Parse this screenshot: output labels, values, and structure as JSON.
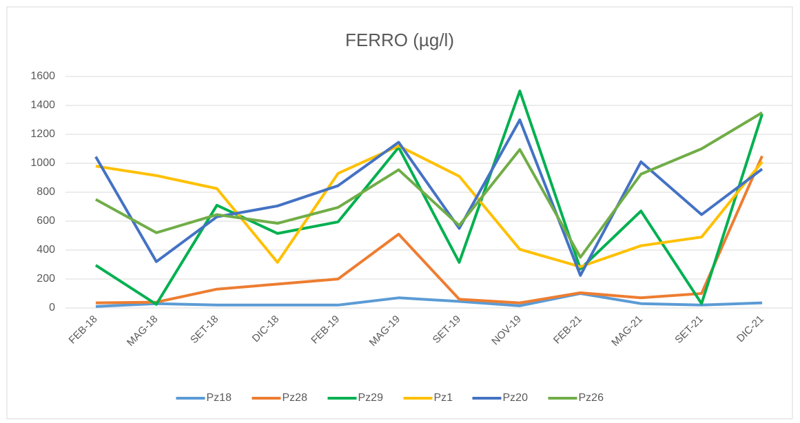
{
  "chart_data": {
    "type": "line",
    "title": "FERRO (µg/l)",
    "categories": [
      "FEB-18",
      "MAG-18",
      "SET-18",
      "DIC-18",
      "FEB-19",
      "MAG-19",
      "SET-19",
      "NOV-19",
      "FEB-21",
      "MAG-21",
      "SET-21",
      "DIC-21"
    ],
    "series": [
      {
        "name": "Pz18",
        "color": "#5b9bd5",
        "values": [
          10,
          30,
          20,
          20,
          20,
          70,
          45,
          15,
          100,
          30,
          20,
          35
        ]
      },
      {
        "name": "Pz28",
        "color": "#ed7d31",
        "values": [
          35,
          40,
          130,
          165,
          200,
          510,
          60,
          35,
          105,
          70,
          100,
          1050
        ]
      },
      {
        "name": "Pz29",
        "color": "#00b050",
        "values": [
          295,
          25,
          710,
          515,
          595,
          1110,
          315,
          1500,
          270,
          670,
          30,
          1340
        ]
      },
      {
        "name": "Pz1",
        "color": "#ffc000",
        "values": [
          980,
          915,
          825,
          315,
          930,
          1120,
          910,
          405,
          285,
          430,
          490,
          1010
        ]
      },
      {
        "name": "Pz20",
        "color": "#4472c4",
        "values": [
          1045,
          320,
          630,
          705,
          845,
          1145,
          550,
          1300,
          225,
          1010,
          645,
          960
        ]
      },
      {
        "name": "Pz26",
        "color": "#70ad47",
        "values": [
          750,
          520,
          645,
          585,
          695,
          955,
          570,
          1095,
          350,
          925,
          1100,
          1350
        ]
      }
    ],
    "ylim": [
      0,
      1600
    ],
    "yticks": [
      0,
      200,
      400,
      600,
      800,
      1000,
      1200,
      1400,
      1600
    ],
    "grid": true,
    "legend": "bottom"
  }
}
